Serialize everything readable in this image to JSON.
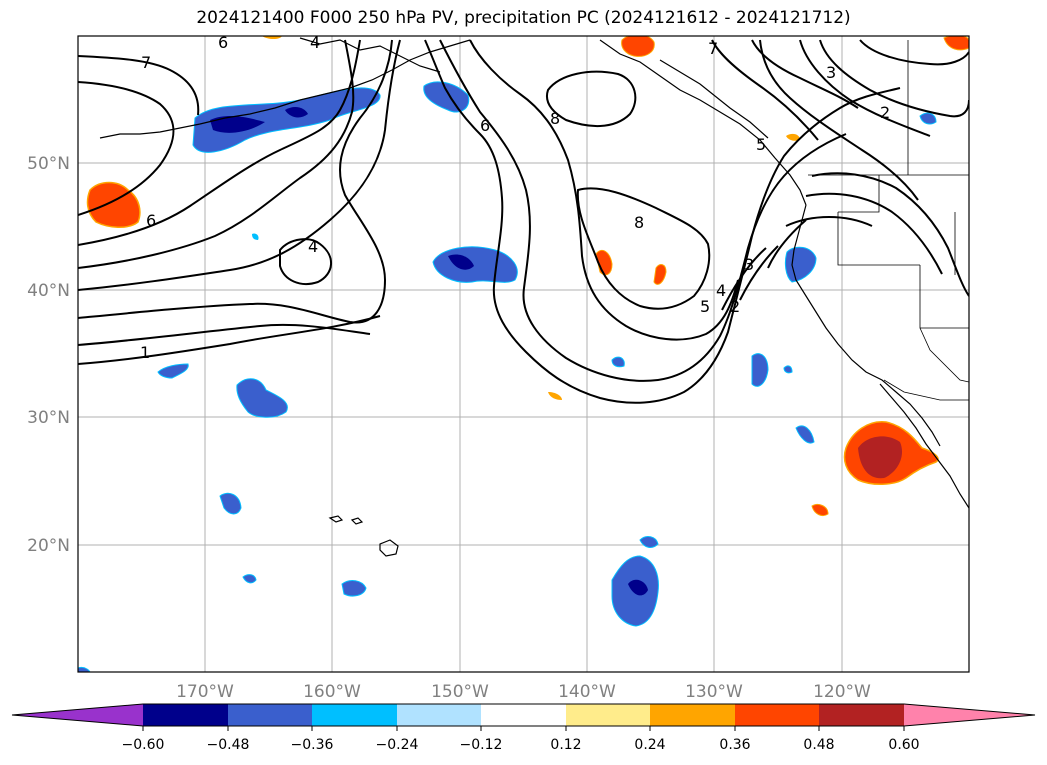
{
  "title": "2024121400 F000 250 hPa PV, precipitation PC (2024121612 - 2024121712)",
  "map": {
    "lat_labels": [
      "50°N",
      "40°N",
      "30°N",
      "20°N"
    ],
    "lon_labels": [
      "170°W",
      "160°W",
      "150°W",
      "140°W",
      "130°W",
      "120°W"
    ],
    "pv_contour_labels": [
      "7",
      "6",
      "6",
      "4",
      "1",
      "6",
      "8",
      "8",
      "7",
      "3",
      "2",
      "5",
      "4",
      "3",
      "2",
      "5",
      "4"
    ]
  },
  "colorbar": {
    "ticks": [
      "−0.60",
      "−0.48",
      "−0.36",
      "−0.24",
      "−0.12",
      "0.12",
      "0.24",
      "0.36",
      "0.48",
      "0.60"
    ],
    "colors": [
      "#9932cc",
      "#00008b",
      "#3a5fcd",
      "#00bfff",
      "#b0e2ff",
      "#ffffff",
      "#ffec8b",
      "#ffa500",
      "#ff4500",
      "#b22222",
      "#ff82ab"
    ]
  }
}
